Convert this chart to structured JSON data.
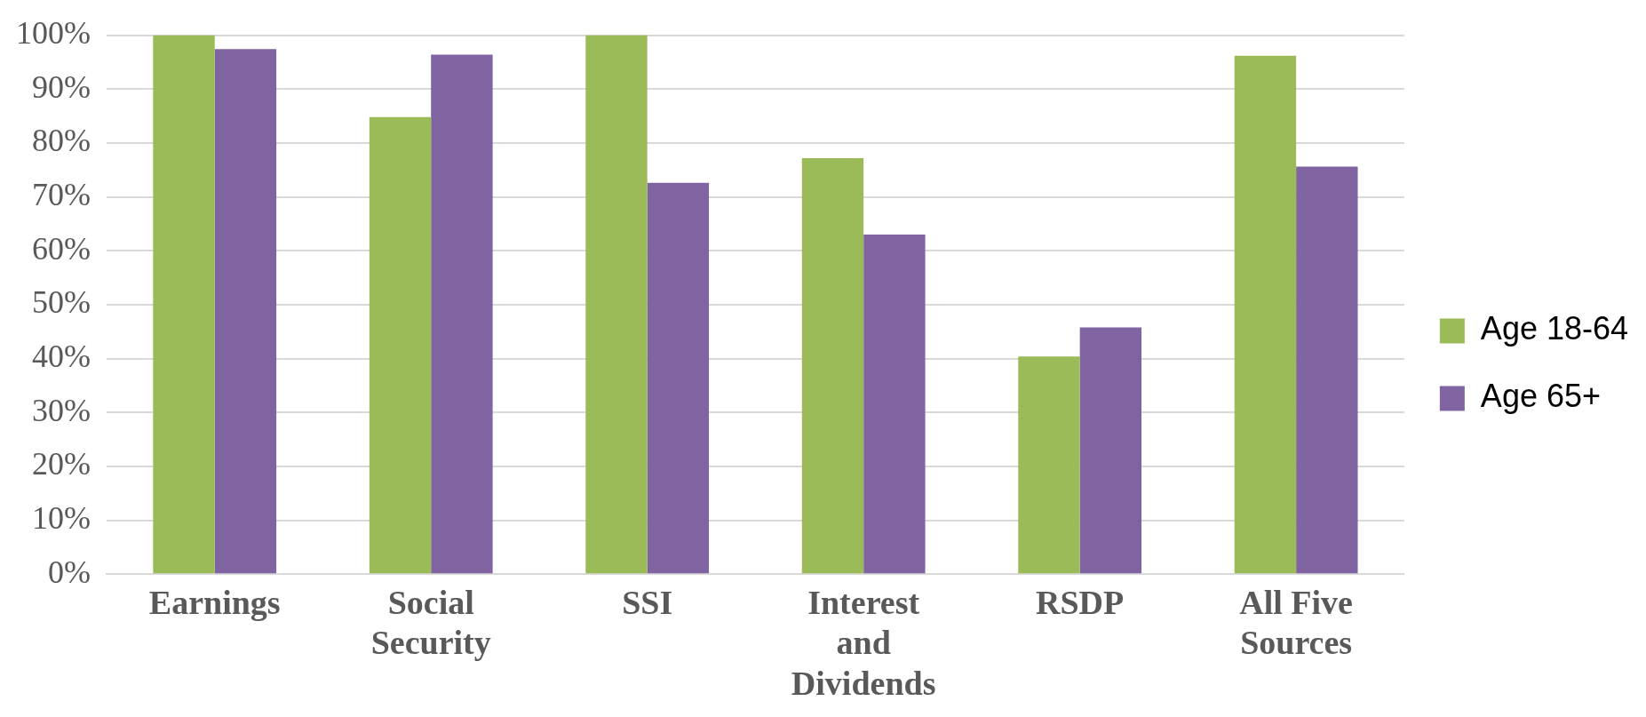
{
  "chart_data": {
    "type": "bar",
    "categories": [
      "Earnings",
      "Social Security",
      "SSI",
      "Interest and Dividends",
      "RSDP",
      "All Five Sources"
    ],
    "series": [
      {
        "name": "Age 18-64",
        "color": "#9bbb59",
        "values": [
          100,
          84.8,
          100,
          77.2,
          40.4,
          96.2
        ]
      },
      {
        "name": "Age 65+",
        "color": "#8064a2",
        "values": [
          97.4,
          96.4,
          72.6,
          63,
          45.8,
          75.6
        ]
      }
    ],
    "ylim": [
      0,
      100
    ],
    "yticks": [
      {
        "value": 0,
        "label": "0%"
      },
      {
        "value": 10,
        "label": "10%"
      },
      {
        "value": 20,
        "label": "20%"
      },
      {
        "value": 30,
        "label": "30%"
      },
      {
        "value": 40,
        "label": "40%"
      },
      {
        "value": 50,
        "label": "50%"
      },
      {
        "value": 60,
        "label": "60%"
      },
      {
        "value": 70,
        "label": "70%"
      },
      {
        "value": 80,
        "label": "80%"
      },
      {
        "value": 90,
        "label": "90%"
      },
      {
        "value": 100,
        "label": "100%"
      }
    ],
    "grid": "y",
    "legend": "right"
  }
}
